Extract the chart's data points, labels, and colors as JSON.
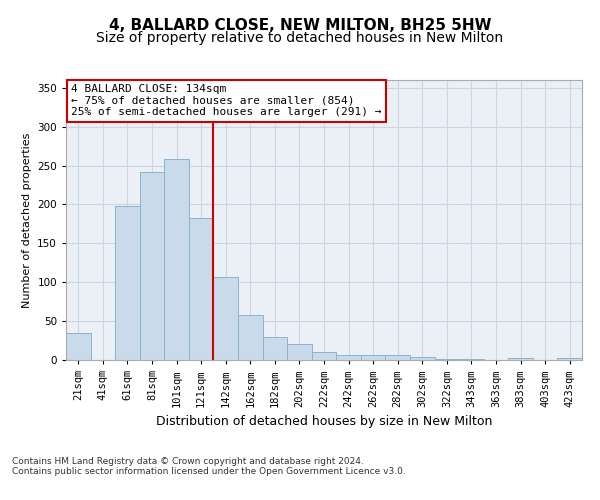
{
  "title": "4, BALLARD CLOSE, NEW MILTON, BH25 5HW",
  "subtitle": "Size of property relative to detached houses in New Milton",
  "xlabel": "Distribution of detached houses by size in New Milton",
  "ylabel": "Number of detached properties",
  "categories": [
    "21sqm",
    "41sqm",
    "61sqm",
    "81sqm",
    "101sqm",
    "121sqm",
    "142sqm",
    "162sqm",
    "182sqm",
    "202sqm",
    "222sqm",
    "242sqm",
    "262sqm",
    "282sqm",
    "302sqm",
    "322sqm",
    "343sqm",
    "363sqm",
    "383sqm",
    "403sqm",
    "423sqm"
  ],
  "values": [
    35,
    0,
    198,
    242,
    258,
    183,
    107,
    58,
    30,
    20,
    10,
    6,
    6,
    6,
    4,
    1,
    1,
    0,
    3,
    0,
    3
  ],
  "bar_color": "#c9daea",
  "bar_edge_color": "#8ab4cc",
  "grid_color": "#ccd6e0",
  "background_color": "#eaf0f6",
  "annotation_box_facecolor": "#ffffff",
  "annotation_border_color": "#cc0000",
  "property_line_color": "#cc0000",
  "property_bin_index": 5,
  "annotation_line1": "4 BALLARD CLOSE: 134sqm",
  "annotation_line2": "← 75% of detached houses are smaller (854)",
  "annotation_line3": "25% of semi-detached houses are larger (291) →",
  "ylim": [
    0,
    360
  ],
  "yticks": [
    0,
    50,
    100,
    150,
    200,
    250,
    300,
    350
  ],
  "footer1": "Contains HM Land Registry data © Crown copyright and database right 2024.",
  "footer2": "Contains public sector information licensed under the Open Government Licence v3.0.",
  "title_fontsize": 11,
  "subtitle_fontsize": 10,
  "xlabel_fontsize": 9,
  "ylabel_fontsize": 8,
  "tick_fontsize": 7.5,
  "annotation_fontsize": 8,
  "footer_fontsize": 6.5
}
